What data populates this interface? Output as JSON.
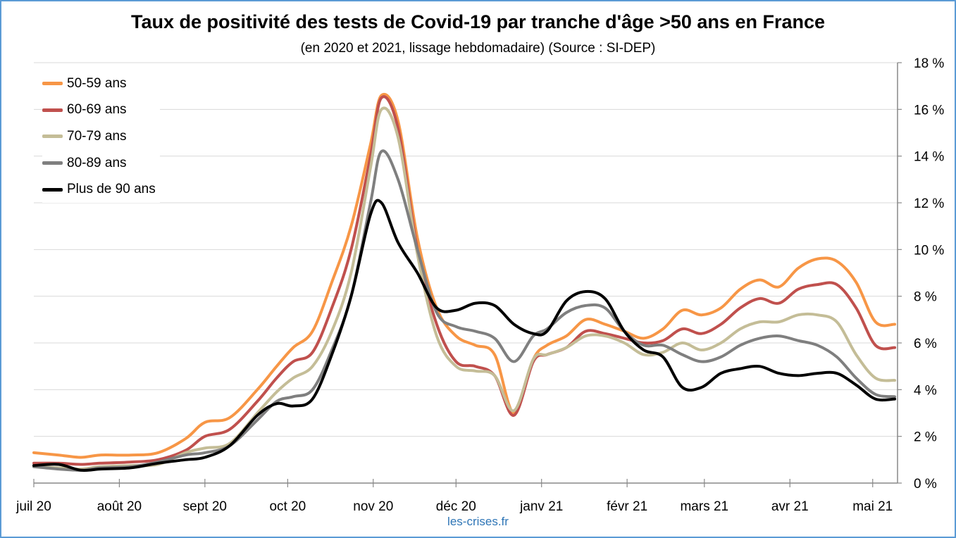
{
  "title": "Taux de positivité des tests de Covid-19 par tranche d'âge >50 ans en France",
  "subtitle": "(en 2020 et 2021, lissage hebdomadaire) (Source : SI-DEP)",
  "source_note": "les-crises.fr",
  "chart_data": {
    "type": "line",
    "title": "Taux de positivité des tests de Covid-19 par tranche d'âge >50 ans en France",
    "subtitle": "(en 2020 et 2021, lissage hebdomadaire) (Source : SI-DEP)",
    "xlabel": "",
    "ylabel": "",
    "x_ticks": [
      "2020-07-01",
      "2020-08-01",
      "2020-09-01",
      "2020-10-01",
      "2020-11-01",
      "2020-12-01",
      "2021-01-01",
      "2021-02-01",
      "2021-03-01",
      "2021-04-01",
      "2021-05-01"
    ],
    "x_tick_labels": [
      "juil 20",
      "août 20",
      "sept 20",
      "oct 20",
      "nov 20",
      "déc 20",
      "janv 21",
      "févr 21",
      "mars 21",
      "avr 21",
      "mai 21"
    ],
    "xlim": [
      "2020-07-01",
      "2021-05-10"
    ],
    "ylim": [
      0,
      18
    ],
    "y_ticks": [
      0,
      2,
      4,
      6,
      8,
      10,
      12,
      14,
      16,
      18
    ],
    "y_tick_labels": [
      "0 %",
      "2 %",
      "4 %",
      "6 %",
      "8 %",
      "10 %",
      "12 %",
      "14 %",
      "16 %",
      "18 %"
    ],
    "y_axis_side": "right",
    "grid": "horizontal",
    "legend_position": "top-left",
    "x": [
      "2020-07-01",
      "2020-07-10",
      "2020-07-18",
      "2020-07-25",
      "2020-08-05",
      "2020-08-15",
      "2020-08-25",
      "2020-09-01",
      "2020-09-10",
      "2020-09-20",
      "2020-09-27",
      "2020-10-03",
      "2020-10-10",
      "2020-10-17",
      "2020-10-24",
      "2020-10-31",
      "2020-11-04",
      "2020-11-10",
      "2020-11-17",
      "2020-11-24",
      "2020-12-01",
      "2020-12-08",
      "2020-12-15",
      "2020-12-22",
      "2020-12-29",
      "2021-01-03",
      "2021-01-10",
      "2021-01-17",
      "2021-01-24",
      "2021-01-31",
      "2021-02-07",
      "2021-02-14",
      "2021-02-21",
      "2021-02-28",
      "2021-03-07",
      "2021-03-14",
      "2021-03-21",
      "2021-03-28",
      "2021-04-04",
      "2021-04-11",
      "2021-04-18",
      "2021-04-25",
      "2021-05-02",
      "2021-05-09"
    ],
    "series": [
      {
        "name": "50-59 ans",
        "color": "#f79646",
        "values": [
          1.3,
          1.2,
          1.1,
          1.2,
          1.2,
          1.3,
          1.9,
          2.6,
          2.8,
          4.0,
          5.0,
          5.8,
          6.5,
          8.6,
          11.0,
          14.5,
          16.6,
          15.5,
          10.5,
          7.5,
          6.3,
          5.9,
          5.5,
          3.0,
          5.3,
          5.9,
          6.3,
          7.0,
          6.8,
          6.5,
          6.2,
          6.6,
          7.4,
          7.2,
          7.5,
          8.3,
          8.7,
          8.4,
          9.2,
          9.6,
          9.5,
          8.6,
          6.9,
          6.8
        ]
      },
      {
        "name": "60-69 ans",
        "color": "#c0504d",
        "values": [
          0.85,
          0.85,
          0.8,
          0.85,
          0.9,
          1.0,
          1.4,
          2.0,
          2.3,
          3.5,
          4.5,
          5.2,
          5.6,
          7.5,
          10.0,
          14.0,
          16.5,
          15.2,
          10.0,
          6.8,
          5.2,
          5.0,
          4.6,
          2.9,
          5.2,
          5.5,
          5.8,
          6.5,
          6.4,
          6.2,
          6.0,
          6.1,
          6.6,
          6.4,
          6.8,
          7.5,
          7.9,
          7.7,
          8.3,
          8.5,
          8.5,
          7.5,
          5.9,
          5.8
        ]
      },
      {
        "name": "70-79 ans",
        "color": "#c4bd97",
        "values": [
          0.7,
          0.65,
          0.6,
          0.7,
          0.75,
          0.8,
          1.3,
          1.5,
          1.7,
          3.0,
          3.9,
          4.5,
          5.0,
          6.5,
          9.0,
          13.5,
          16.0,
          14.8,
          9.8,
          6.3,
          5.0,
          4.8,
          4.6,
          3.1,
          5.3,
          5.5,
          5.8,
          6.3,
          6.3,
          6.0,
          5.5,
          5.6,
          6.0,
          5.7,
          6.0,
          6.6,
          6.9,
          6.9,
          7.2,
          7.2,
          6.9,
          5.5,
          4.5,
          4.4
        ]
      },
      {
        "name": "80-89 ans",
        "color": "#7f7f7f",
        "values": [
          0.7,
          0.6,
          0.55,
          0.65,
          0.7,
          0.9,
          1.2,
          1.3,
          1.6,
          2.7,
          3.5,
          3.7,
          4.0,
          5.7,
          8.0,
          12.0,
          14.2,
          13.0,
          10.0,
          7.3,
          6.7,
          6.5,
          6.2,
          5.2,
          6.3,
          6.6,
          7.3,
          7.6,
          7.5,
          6.5,
          5.9,
          5.9,
          5.5,
          5.2,
          5.4,
          5.9,
          6.2,
          6.3,
          6.1,
          5.9,
          5.4,
          4.5,
          3.8,
          3.7
        ]
      },
      {
        "name": "Plus de 90 ans",
        "color": "#000000",
        "values": [
          0.75,
          0.8,
          0.55,
          0.6,
          0.65,
          0.85,
          1.0,
          1.1,
          1.6,
          2.9,
          3.4,
          3.3,
          3.6,
          5.5,
          8.0,
          11.5,
          12.0,
          10.3,
          9.0,
          7.5,
          7.4,
          7.7,
          7.6,
          6.8,
          6.4,
          6.5,
          7.8,
          8.2,
          7.9,
          6.5,
          5.7,
          5.4,
          4.1,
          4.1,
          4.7,
          4.9,
          5.0,
          4.7,
          4.6,
          4.7,
          4.7,
          4.2,
          3.6,
          3.6
        ]
      }
    ]
  }
}
